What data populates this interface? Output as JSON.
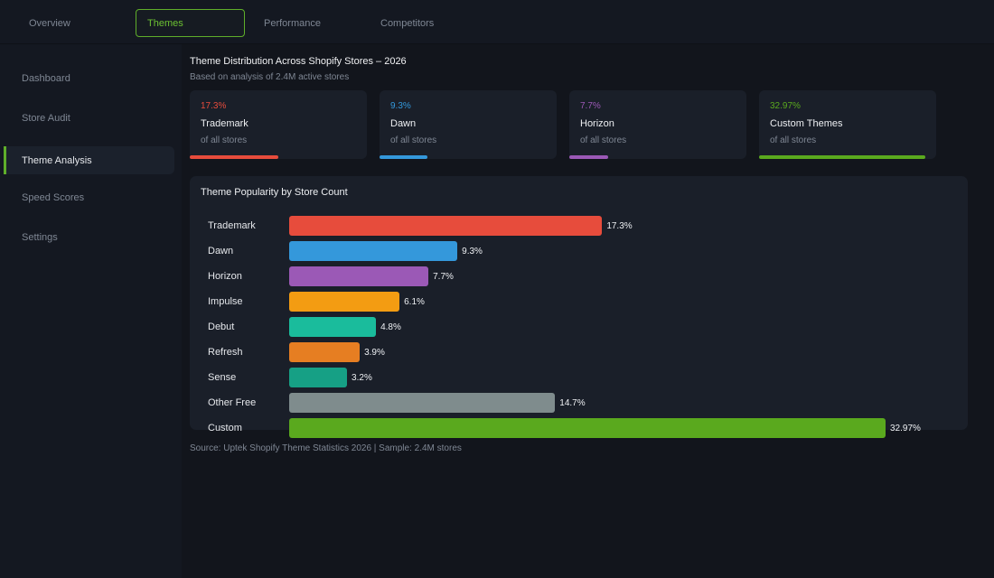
{
  "tabs": [
    {
      "label": "Overview",
      "active": false
    },
    {
      "label": "Themes",
      "active": true
    },
    {
      "label": "Performance",
      "active": false
    },
    {
      "label": "Competitors",
      "active": false
    }
  ],
  "sidebar": {
    "items": [
      {
        "label": "Dashboard",
        "active": false
      },
      {
        "label": "Store Audit",
        "active": false
      },
      {
        "label": "Theme Analysis",
        "active": true
      },
      {
        "label": "Speed Scores",
        "active": false
      },
      {
        "label": "Settings",
        "active": false
      }
    ]
  },
  "header": {
    "title": "Theme Distribution Across Shopify Stores – 2026",
    "subtitle": "Based on analysis of 2.4M active stores"
  },
  "cards": [
    {
      "pct": "17.3%",
      "name": "Trademark",
      "sub": "of all stores",
      "color": "#e74c3c",
      "fill": 0.5
    },
    {
      "pct": "9.3%",
      "name": "Dawn",
      "sub": "of all stores",
      "color": "#3498db",
      "fill": 0.27
    },
    {
      "pct": "7.7%",
      "name": "Horizon",
      "sub": "of all stores",
      "color": "#9b59b6",
      "fill": 0.22
    },
    {
      "pct": "32.97%",
      "name": "Custom Themes",
      "sub": "of all stores",
      "color": "#5aa91e",
      "fill": 0.94
    }
  ],
  "chart_data": {
    "type": "bar",
    "orientation": "horizontal",
    "title": "Theme Popularity by Store Count",
    "categories": [
      "Trademark",
      "Dawn",
      "Horizon",
      "Impulse",
      "Debut",
      "Refresh",
      "Sense",
      "Other Free",
      "Custom"
    ],
    "values": [
      17.3,
      9.3,
      7.7,
      6.1,
      4.8,
      3.9,
      3.2,
      14.7,
      32.97
    ],
    "value_labels": [
      "17.3%",
      "9.3%",
      "7.7%",
      "6.1%",
      "4.8%",
      "3.9%",
      "3.2%",
      "14.7%",
      "32.97%"
    ],
    "colors": [
      "#e74c3c",
      "#3498db",
      "#9b59b6",
      "#f39c12",
      "#1abc9c",
      "#e67e22",
      "#16a085",
      "#7f8c8d",
      "#5aa91e"
    ],
    "xlim": [
      0,
      32.97
    ],
    "grid": false,
    "legend": "none"
  },
  "footer": {
    "source": "Source: Uptek Shopify Theme Statistics 2026 | Sample: 2.4M stores"
  }
}
